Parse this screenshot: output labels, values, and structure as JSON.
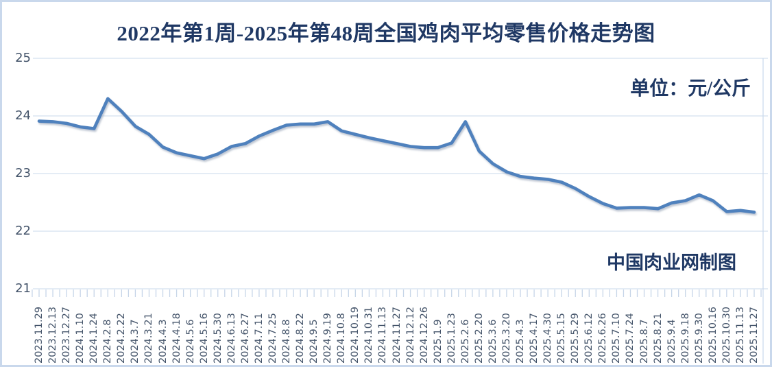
{
  "page": {
    "title": "2022年第1周-2025年第48周全国鸡肉平均零售价格走势图",
    "unit_label": "单位：元/公斤",
    "watermark": "中国肉业网制图"
  },
  "colors": {
    "title_navy": "#1f3864",
    "line_blue": "#4f81bd",
    "gridline": "#dce6f2",
    "tick": "#c6d5e8",
    "axis_text": "#44546a",
    "frame_border": "#c9d8ec"
  },
  "chart_data": {
    "type": "line",
    "title": "2022年第1周-2025年第48周全国鸡肉平均零售价格走势图",
    "xlabel": "",
    "ylabel": "元/公斤",
    "ylim": [
      21,
      25
    ],
    "y_ticks": [
      "25",
      "24",
      "23",
      "22",
      "21"
    ],
    "grid": true,
    "legend_position": "none",
    "categories": [
      "2023.11.29",
      "2023.12.13",
      "2023.12.27",
      "2024.1.10",
      "2024.1.24",
      "2024.2.8",
      "2024.2.22",
      "2024.3.7",
      "2024.3.21",
      "2024.4.3",
      "2024.4.18",
      "2024.5.6",
      "2024.5.16",
      "2024.5.30",
      "2024.6.13",
      "2024.6.27",
      "2024.7.11",
      "2024.7.25",
      "2024.8.8",
      "2024.8.22",
      "2024.9.5",
      "2024.9.19",
      "2024.10.8",
      "2024.10.19",
      "2024.10.31",
      "2024.11.13",
      "2024.11.27",
      "2024.12.12",
      "2024.12.26",
      "2025.1.9",
      "2025.1.23",
      "2025.2.6",
      "2025.2.20",
      "2025.3.6",
      "2025.3.20",
      "2025.4.3",
      "2025.4.17",
      "2025.4.30",
      "2025.5.15",
      "2025.5.29",
      "2025.6.12",
      "2025.6.26",
      "2025.7.10",
      "2025.7.24",
      "2025.8.7",
      "2025.8.21",
      "2025.9.4",
      "2025.9.18",
      "2025.9.30",
      "2025.10.16",
      "2025.10.30",
      "2025.11.13",
      "2025.11.27"
    ],
    "values": [
      23.91,
      23.9,
      23.87,
      23.81,
      23.78,
      24.3,
      24.08,
      23.82,
      23.68,
      23.46,
      23.36,
      23.31,
      23.26,
      23.34,
      23.47,
      23.52,
      23.65,
      23.75,
      23.84,
      23.86,
      23.86,
      23.9,
      23.74,
      23.68,
      23.62,
      23.57,
      23.52,
      23.47,
      23.45,
      23.45,
      23.53,
      23.9,
      23.39,
      23.17,
      23.03,
      22.95,
      22.92,
      22.9,
      22.85,
      22.74,
      22.6,
      22.48,
      22.4,
      22.41,
      22.41,
      22.39,
      22.49,
      22.53,
      22.63,
      22.53,
      22.34,
      22.36,
      22.33
    ]
  }
}
